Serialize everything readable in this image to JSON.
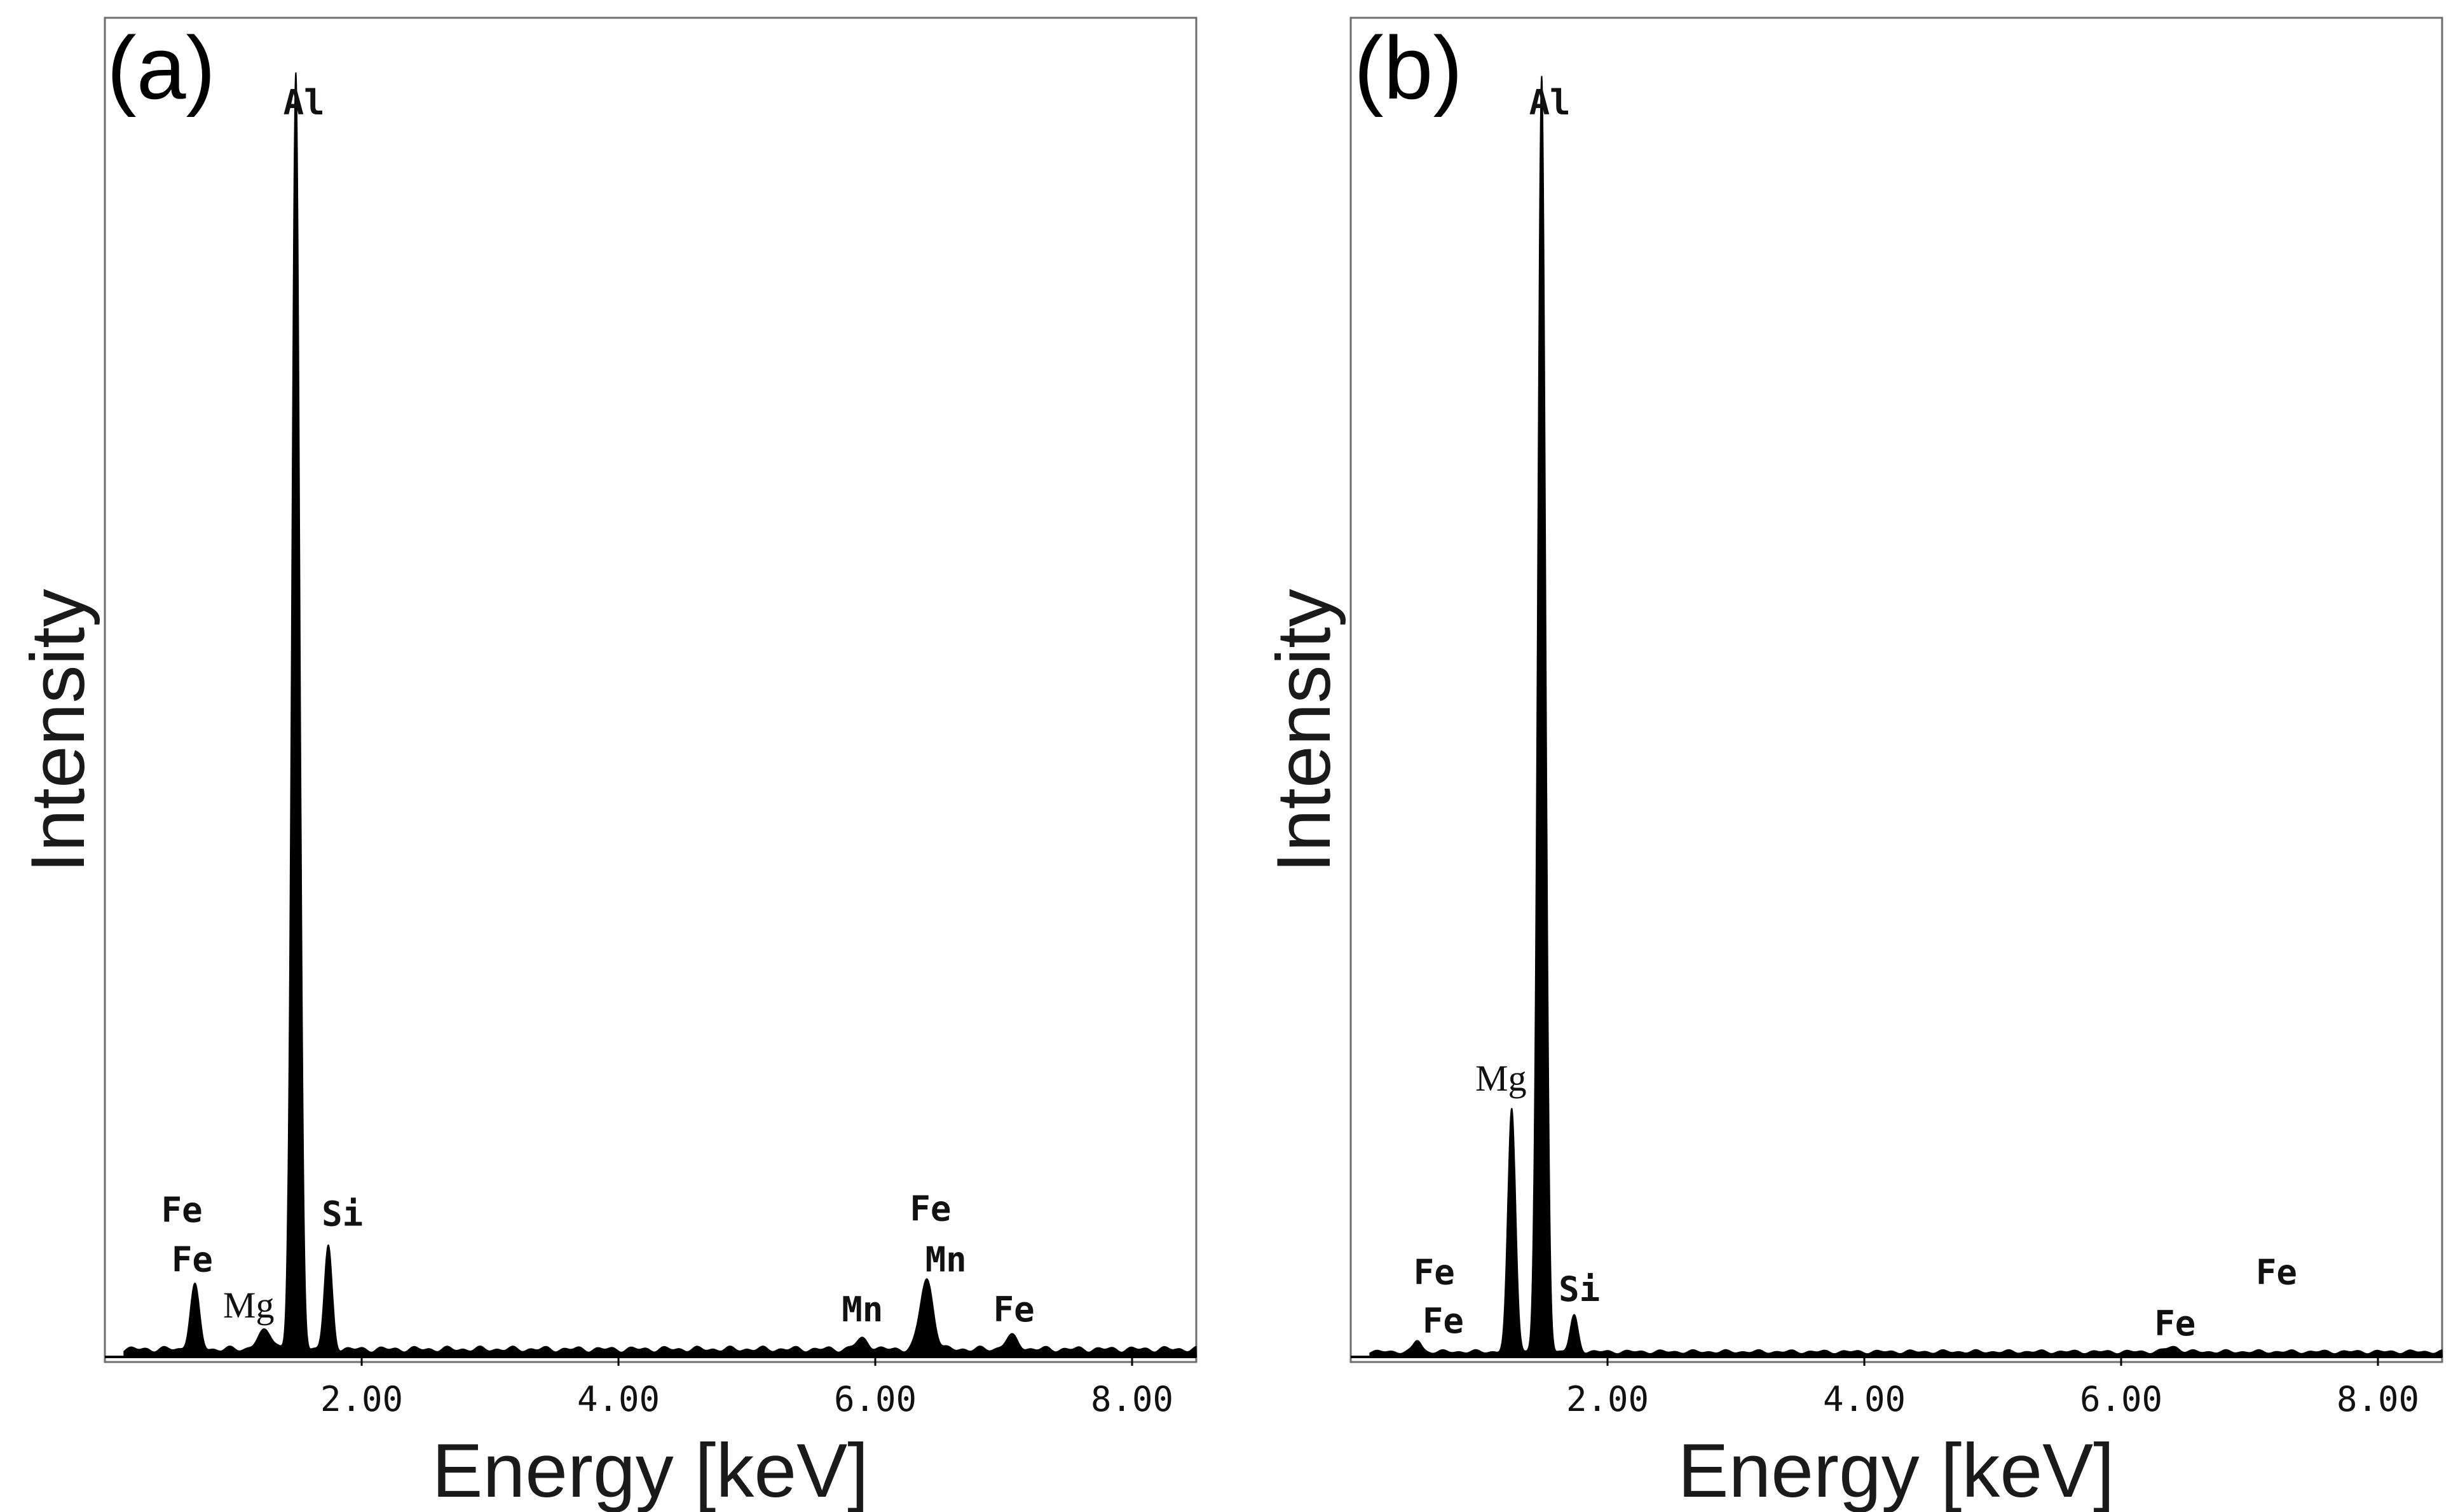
{
  "chart_data": [
    {
      "type": "line",
      "panel_label": "(a)",
      "xlabel": "Energy [keV]",
      "ylabel": "Intensity",
      "xlim": [
        0,
        8.5
      ],
      "ylim": [
        0,
        100
      ],
      "x_ticks": [
        2.0,
        4.0,
        6.0,
        8.0
      ],
      "x_tick_labels": [
        "2.00",
        "4.00",
        "6.00",
        "8.00"
      ],
      "baseline": 0.6,
      "peaks": [
        {
          "energy": 0.7,
          "height": 5.0,
          "width": 0.035
        },
        {
          "energy": 1.25,
          "height": 1.4,
          "width": 0.06
        },
        {
          "energy": 1.487,
          "height": 100,
          "width": 0.03
        },
        {
          "energy": 1.74,
          "height": 8.0,
          "width": 0.03
        },
        {
          "energy": 5.9,
          "height": 0.8,
          "width": 0.05
        },
        {
          "energy": 6.4,
          "height": 5.5,
          "width": 0.05
        },
        {
          "energy": 7.06,
          "height": 1.0,
          "width": 0.05
        }
      ],
      "annotations": [
        {
          "text": "Al",
          "energy": 1.55,
          "level": 97.5,
          "font": "mono"
        },
        {
          "text": "Fe",
          "energy": 0.6,
          "level": 10.6,
          "font": "mono"
        },
        {
          "text": "Fe",
          "energy": 0.68,
          "level": 6.7,
          "font": "mono"
        },
        {
          "text": "Mg",
          "energy": 1.12,
          "level": 3.1,
          "font": "serif"
        },
        {
          "text": "Si",
          "energy": 1.85,
          "level": 10.3,
          "font": "mono"
        },
        {
          "text": "Mn",
          "energy": 5.9,
          "level": 2.8,
          "font": "mono"
        },
        {
          "text": "Fe",
          "energy": 6.43,
          "level": 10.7,
          "font": "mono"
        },
        {
          "text": "Mn",
          "energy": 6.55,
          "level": 6.7,
          "font": "mono"
        },
        {
          "text": "Fe",
          "energy": 7.08,
          "level": 2.8,
          "font": "mono"
        }
      ]
    },
    {
      "type": "line",
      "panel_label": "(b)",
      "xlabel": "Energy [keV]",
      "ylabel": "Intensity",
      "xlim": [
        0,
        8.5
      ],
      "ylim": [
        0,
        100
      ],
      "x_ticks": [
        2.0,
        4.0,
        6.0,
        8.0
      ],
      "x_tick_labels": [
        "2.00",
        "4.00",
        "6.00",
        "8.00"
      ],
      "baseline": 0.4,
      "peaks": [
        {
          "energy": 0.52,
          "height": 0.9,
          "width": 0.03
        },
        {
          "energy": 1.254,
          "height": 19.0,
          "width": 0.03
        },
        {
          "energy": 1.487,
          "height": 100,
          "width": 0.03
        },
        {
          "energy": 1.74,
          "height": 2.8,
          "width": 0.03
        },
        {
          "energy": 6.4,
          "height": 0.4,
          "width": 0.05
        }
      ],
      "annotations": [
        {
          "text": "Al",
          "energy": 1.55,
          "level": 97.5,
          "font": "mono"
        },
        {
          "text": "Mg",
          "energy": 1.17,
          "level": 20.9,
          "font": "serif"
        },
        {
          "text": "Fe",
          "energy": 0.65,
          "level": 5.7,
          "font": "mono"
        },
        {
          "text": "Fe",
          "energy": 0.72,
          "level": 1.9,
          "font": "mono"
        },
        {
          "text": "Si",
          "energy": 1.78,
          "level": 4.4,
          "font": "mono"
        },
        {
          "text": "Fe",
          "energy": 7.21,
          "level": 5.7,
          "font": "mono"
        },
        {
          "text": "Fe",
          "energy": 6.42,
          "level": 1.7,
          "font": "mono"
        }
      ]
    }
  ]
}
